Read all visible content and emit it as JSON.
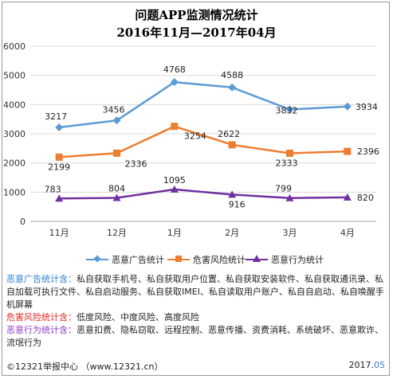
{
  "chart_data": {
    "type": "line",
    "title": "问题APP监测情况统计",
    "subtitle": "2016年11月—2017年04月",
    "categories": [
      "11月",
      "12月",
      "1月",
      "2月",
      "3月",
      "4月"
    ],
    "y_ticks": [
      "0",
      "1000",
      "2000",
      "3000",
      "4000",
      "5000",
      "6000"
    ],
    "ylim": [
      0,
      6000
    ],
    "grid": true,
    "legend_position": "bottom",
    "series": [
      {
        "name": "恶意广告统计",
        "color": "#5b9bd5",
        "marker": "diamond",
        "values": [
          3217,
          3456,
          4768,
          4588,
          3832,
          3934
        ]
      },
      {
        "name": "危害风险统计",
        "color": "#ed7d31",
        "marker": "square",
        "values": [
          2199,
          2336,
          3254,
          2622,
          2333,
          2396
        ]
      },
      {
        "name": "恶意行为统计",
        "color": "#7030a0",
        "marker": "triangle",
        "values": [
          783,
          804,
          1095,
          916,
          799,
          820
        ]
      }
    ]
  },
  "notes": [
    {
      "head": "恶意广告统计含：",
      "color": "#2c7fd3",
      "body": "私自获取手机号、私自获取用户位置、私自获取安装软件、私自获取通讯录、私自加载可执行文件、私自启动服务、私自获取IMEI、私自读取用户账户、私自自启动、私自唤醒手机屏幕"
    },
    {
      "head": "危害风险统计含：",
      "color": "#e0281f",
      "body": "低度风险、中度风险、高度风险"
    },
    {
      "head": "恶意行为统计含：",
      "color": "#8e3cc0",
      "body": "恶意扣费、隐私窃取、远程控制、恶意传播、资费消耗、系统破坏、恶意欺诈、流氓行为"
    }
  ],
  "footer": {
    "left": "©12321举报中心  （www.12321.cn）",
    "right_main": "2017.",
    "right_accent": "05"
  }
}
